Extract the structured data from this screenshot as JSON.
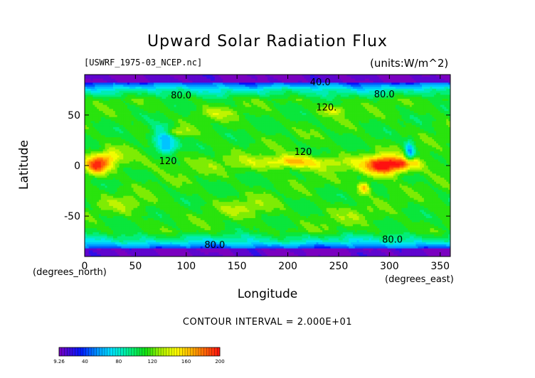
{
  "chart_data": {
    "type": "heatmap",
    "title": "Upward Solar Radiation Flux",
    "file_label": "[USWRF_1975-03_NCEP.nc]",
    "units_label": "(units:W/m^2)",
    "xlabel": "Longitude",
    "ylabel": "Latitude",
    "x_units_label": "(degrees_east)",
    "y_units_label": "(degrees_north)",
    "xlim": [
      0,
      360
    ],
    "ylim": [
      -90,
      90
    ],
    "x_ticks": [
      0,
      50,
      100,
      150,
      200,
      250,
      300,
      350
    ],
    "y_ticks": [
      50,
      0,
      -50
    ],
    "contour_interval_text": "CONTOUR INTERVAL = 2.000E+01",
    "contour_interval": 20,
    "contour_labels": [
      {
        "text": "40.0",
        "lon": 232,
        "lat": 82
      },
      {
        "text": "80.0",
        "lon": 95,
        "lat": 69
      },
      {
        "text": "80.0",
        "lon": 295,
        "lat": 70
      },
      {
        "text": "120.",
        "lon": 238,
        "lat": 57
      },
      {
        "text": "120",
        "lon": 215,
        "lat": 13
      },
      {
        "text": "120",
        "lon": 82,
        "lat": 4
      },
      {
        "text": "80.0",
        "lon": 128,
        "lat": -79
      },
      {
        "text": "80.0",
        "lon": 303,
        "lat": -74
      }
    ],
    "colorbar": {
      "min": 9.26,
      "max": 200,
      "tick_labels": [
        "9.26",
        "40",
        "80",
        "120",
        "160",
        "200"
      ],
      "tick_values": [
        9.26,
        40,
        80,
        120,
        160,
        200
      ]
    },
    "colors": {
      "violet": "#7a00c0",
      "blue": "#0018ff",
      "azure": "#0096ff",
      "cyan": "#00e4ff",
      "aqua_green": "#00f08c",
      "green": "#10e010",
      "yellow_green": "#a8f000",
      "yellow": "#ffff00",
      "orange": "#ffa000",
      "red": "#ff1010"
    }
  }
}
